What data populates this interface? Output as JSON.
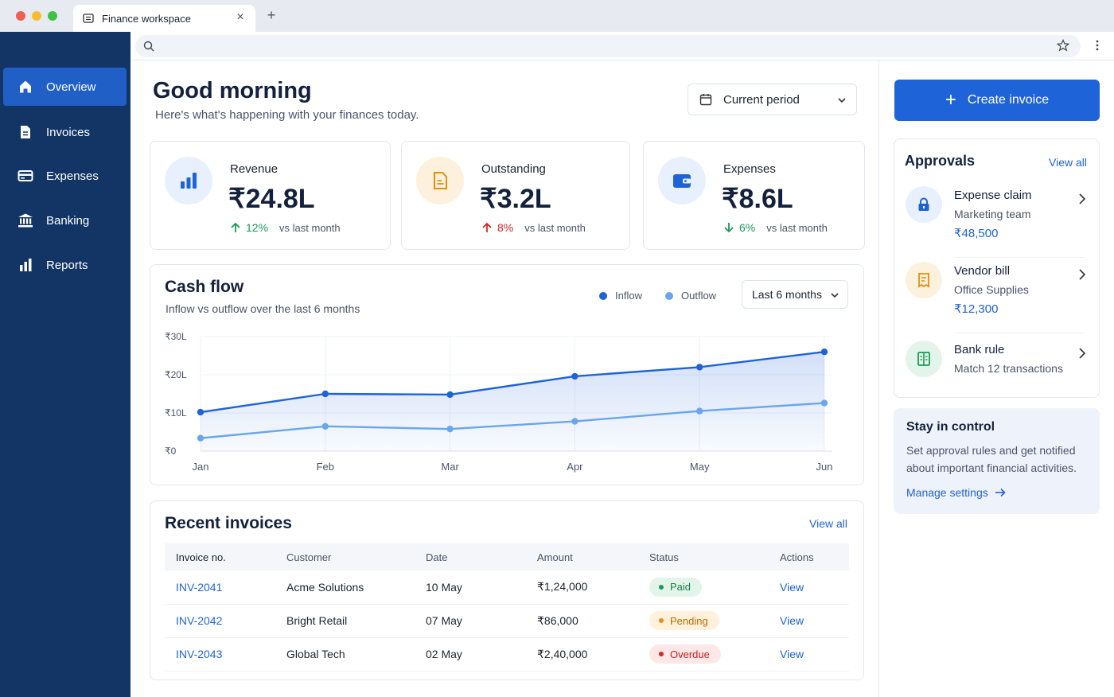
{
  "browser": {
    "tab_title": "Finance workspace",
    "close_glyph": "×",
    "new_tab_glyph": "+"
  },
  "sidebar": {
    "items": [
      {
        "label": "Overview",
        "icon": "home-icon",
        "active": true
      },
      {
        "label": "Invoices",
        "icon": "document-icon",
        "active": false
      },
      {
        "label": "Expenses",
        "icon": "credit-card-icon",
        "active": false
      },
      {
        "label": "Banking",
        "icon": "bank-icon",
        "active": false
      },
      {
        "label": "Reports",
        "icon": "bar-chart-icon",
        "active": false
      }
    ]
  },
  "header": {
    "greeting": "Good morning",
    "subtitle": "Here's what's happening with your finances today.",
    "period_select": "Current period"
  },
  "stats": [
    {
      "label": "Revenue",
      "value": "₹24.8L",
      "change": "12%",
      "direction": "up",
      "change_color": "#1a9a56",
      "compare": "vs last month",
      "icon": "bar-chart-icon"
    },
    {
      "label": "Outstanding",
      "value": "₹3.2L",
      "change": "8%",
      "direction": "up",
      "change_color": "#d72626",
      "compare": "vs last month",
      "icon": "document-icon"
    },
    {
      "label": "Expenses",
      "value": "₹8.6L",
      "change": "6%",
      "direction": "down",
      "change_color": "#1a9a56",
      "compare": "vs last month",
      "icon": "wallet-icon"
    }
  ],
  "cashflow": {
    "title": "Cash flow",
    "subtitle": "Inflow vs outflow over the last 6 months",
    "legend_inflow": "Inflow",
    "legend_outflow": "Outflow",
    "range_select": "Last 6 months"
  },
  "chart_data": {
    "type": "line",
    "categories": [
      "Jan",
      "Feb",
      "Mar",
      "Apr",
      "May",
      "Jun"
    ],
    "series": [
      {
        "name": "Inflow",
        "values": [
          10.2,
          15.0,
          14.8,
          19.6,
          22.0,
          26.0
        ],
        "color": "#1f63d8"
      },
      {
        "name": "Outflow",
        "values": [
          3.4,
          6.5,
          5.8,
          7.8,
          10.5,
          12.6
        ],
        "color": "#6aa6ee"
      }
    ],
    "ylim": [
      0,
      30
    ],
    "yticks": [
      "₹0",
      "₹10L",
      "₹20L",
      "₹30L"
    ],
    "grid": true,
    "legend": "top-right"
  },
  "invoices": {
    "title": "Recent invoices",
    "view_all": "View all",
    "columns": [
      "Invoice no.",
      "Customer",
      "Date",
      "Amount",
      "Status",
      "Actions"
    ],
    "rows": [
      {
        "id": "INV-2041",
        "customer": "Acme Solutions",
        "date": "10 May",
        "amount": "₹1,24,000",
        "status": "Paid",
        "status_bg": "#e3f5ea",
        "status_fg": "#1a7f46",
        "status_dot": "#1a9a56",
        "action": "View"
      },
      {
        "id": "INV-2042",
        "customer": "Bright Retail",
        "date": "07 May",
        "amount": "₹86,000",
        "status": "Pending",
        "status_bg": "#fff1dc",
        "status_fg": "#b86b00",
        "status_dot": "#e48f0c",
        "action": "View"
      },
      {
        "id": "INV-2043",
        "customer": "Global Tech",
        "date": "02 May",
        "amount": "₹2,40,000",
        "status": "Overdue",
        "status_bg": "#fde7e7",
        "status_fg": "#c32020",
        "status_dot": "#d72626",
        "action": "View"
      }
    ]
  },
  "right_panel": {
    "create_label": "Create invoice",
    "create_glyph": "+",
    "approvals_title": "Approvals",
    "approvals_view_all": "View all",
    "approvals": [
      {
        "name": "Expense claim",
        "sub": "Marketing team",
        "amount": "₹48,500",
        "icon": "lock-icon"
      },
      {
        "name": "Vendor bill",
        "sub": "Office Supplies",
        "amount": "₹12,300",
        "icon": "bill-icon"
      },
      {
        "name": "Bank rule",
        "sub": "Match 12 transactions",
        "amount": "",
        "icon": "ledger-icon"
      }
    ],
    "stay_title": "Stay in control",
    "stay_desc": "Set approval rules and get notified about important financial activities.",
    "stay_link": "Manage settings"
  },
  "colors": {
    "sidebar_bg": "#123566",
    "accent": "#1f63d8",
    "positive": "#1a9a56",
    "negative": "#d72626"
  }
}
